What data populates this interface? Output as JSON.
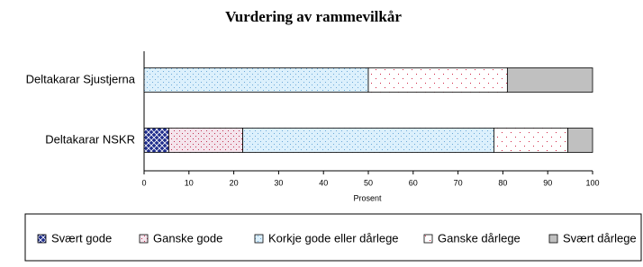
{
  "chart_data": {
    "type": "stacked-bar-horizontal",
    "title": "Vurdering av rammevilkår",
    "x_label": "Prosent",
    "categories": [
      "Deltakarar Sjustjerna",
      "Deltakarar NSKR"
    ],
    "series": [
      {
        "name": "Svært gode",
        "color": "#1f2d8c",
        "values": [
          0,
          5.5
        ]
      },
      {
        "name": "Ganske gode",
        "color": "#f4e4ec",
        "values": [
          0,
          16.5
        ]
      },
      {
        "name": "Korkje gode eller dårlege",
        "color": "#dcf0fc",
        "values": [
          50,
          56
        ]
      },
      {
        "name": "Ganske dårlege",
        "color": "#ffffff",
        "values": [
          31,
          16.5
        ]
      },
      {
        "name": "Svært dårlege",
        "color": "#c0c0c0",
        "values": [
          19,
          5.5
        ]
      }
    ],
    "xlim": [
      0,
      100
    ],
    "xticks": [
      0,
      10,
      20,
      30,
      40,
      50,
      60,
      70,
      80,
      90,
      100
    ]
  }
}
